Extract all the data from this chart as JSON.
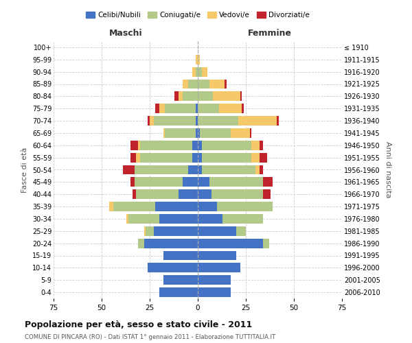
{
  "age_groups": [
    "0-4",
    "5-9",
    "10-14",
    "15-19",
    "20-24",
    "25-29",
    "30-34",
    "35-39",
    "40-44",
    "45-49",
    "50-54",
    "55-59",
    "60-64",
    "65-69",
    "70-74",
    "75-79",
    "80-84",
    "85-89",
    "90-94",
    "95-99",
    "100+"
  ],
  "birth_years": [
    "2006-2010",
    "2001-2005",
    "1996-2000",
    "1991-1995",
    "1986-1990",
    "1981-1985",
    "1976-1980",
    "1971-1975",
    "1966-1970",
    "1961-1965",
    "1956-1960",
    "1951-1955",
    "1946-1950",
    "1941-1945",
    "1936-1940",
    "1931-1935",
    "1926-1930",
    "1921-1925",
    "1916-1920",
    "1911-1915",
    "≤ 1910"
  ],
  "male": {
    "celibi": [
      20,
      18,
      26,
      18,
      28,
      23,
      20,
      22,
      10,
      8,
      5,
      3,
      3,
      1,
      1,
      1,
      0,
      0,
      0,
      0,
      0
    ],
    "coniugati": [
      0,
      0,
      0,
      0,
      3,
      4,
      16,
      22,
      22,
      25,
      28,
      27,
      27,
      16,
      22,
      16,
      8,
      5,
      1,
      0,
      0
    ],
    "vedovi": [
      0,
      0,
      0,
      0,
      0,
      1,
      1,
      2,
      0,
      0,
      0,
      2,
      1,
      1,
      2,
      3,
      2,
      3,
      2,
      1,
      0
    ],
    "divorziati": [
      0,
      0,
      0,
      0,
      0,
      0,
      0,
      0,
      2,
      2,
      6,
      3,
      4,
      0,
      1,
      2,
      2,
      0,
      0,
      0,
      0
    ]
  },
  "female": {
    "nubili": [
      17,
      17,
      22,
      20,
      34,
      20,
      13,
      10,
      7,
      6,
      2,
      2,
      2,
      1,
      0,
      0,
      0,
      0,
      0,
      0,
      0
    ],
    "coniugate": [
      0,
      0,
      0,
      0,
      3,
      5,
      21,
      29,
      27,
      28,
      28,
      26,
      26,
      16,
      21,
      11,
      8,
      6,
      2,
      0,
      0
    ],
    "vedove": [
      0,
      0,
      0,
      0,
      0,
      0,
      0,
      0,
      0,
      0,
      2,
      4,
      4,
      10,
      20,
      12,
      14,
      8,
      3,
      1,
      0
    ],
    "divorziate": [
      0,
      0,
      0,
      0,
      0,
      0,
      0,
      0,
      4,
      5,
      2,
      4,
      2,
      1,
      1,
      1,
      1,
      1,
      0,
      0,
      0
    ]
  },
  "colors": {
    "celibi": "#4472C4",
    "coniugati": "#B3C98A",
    "vedovi": "#F5C96A",
    "divorziati": "#C0232B"
  },
  "xlim": 75,
  "title": "Popolazione per età, sesso e stato civile - 2011",
  "subtitle": "COMUNE DI PINCARA (RO) - Dati ISTAT 1° gennaio 2011 - Elaborazione TUTTITALIA.IT",
  "xlabel_left": "Maschi",
  "xlabel_right": "Femmine",
  "ylabel_left": "Fasce di età",
  "ylabel_right": "Anni di nascita"
}
